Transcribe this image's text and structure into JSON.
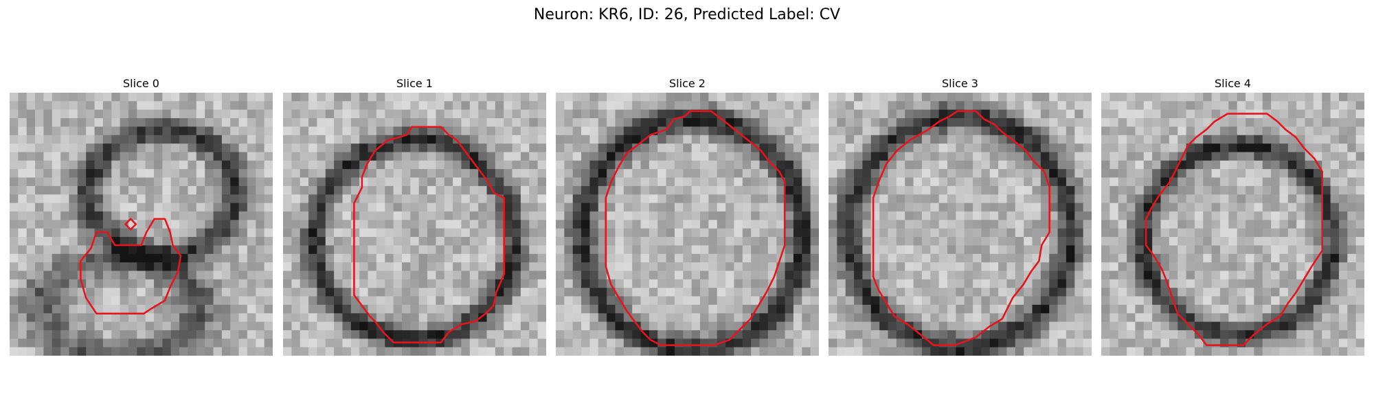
{
  "figure": {
    "title": "Neuron: KR6, ID: 26, Predicted Label: CV"
  },
  "contour_color": "#e8141c",
  "image_style": "grayscale microscopy patch",
  "panels": [
    {
      "title": "Slice 0",
      "shape": "blob",
      "contour": [
        [
          0.33,
          0.53
        ],
        [
          0.37,
          0.53
        ],
        [
          0.4,
          0.58
        ],
        [
          0.5,
          0.58
        ],
        [
          0.52,
          0.53
        ],
        [
          0.55,
          0.48
        ],
        [
          0.59,
          0.48
        ],
        [
          0.61,
          0.53
        ],
        [
          0.62,
          0.58
        ],
        [
          0.65,
          0.62
        ],
        [
          0.64,
          0.68
        ],
        [
          0.61,
          0.74
        ],
        [
          0.59,
          0.79
        ],
        [
          0.54,
          0.82
        ],
        [
          0.51,
          0.84
        ],
        [
          0.33,
          0.84
        ],
        [
          0.29,
          0.78
        ],
        [
          0.27,
          0.71
        ],
        [
          0.27,
          0.64
        ],
        [
          0.31,
          0.59
        ]
      ],
      "extra_contour": [
        [
          0.46,
          0.48
        ],
        [
          0.48,
          0.5
        ],
        [
          0.46,
          0.52
        ],
        [
          0.44,
          0.5
        ]
      ]
    },
    {
      "title": "Slice 1",
      "shape": "ring",
      "contour": [
        [
          0.4,
          0.18
        ],
        [
          0.44,
          0.17
        ],
        [
          0.47,
          0.16
        ],
        [
          0.49,
          0.13
        ],
        [
          0.6,
          0.13
        ],
        [
          0.63,
          0.16
        ],
        [
          0.66,
          0.18
        ],
        [
          0.69,
          0.22
        ],
        [
          0.72,
          0.26
        ],
        [
          0.75,
          0.3
        ],
        [
          0.78,
          0.34
        ],
        [
          0.8,
          0.38
        ],
        [
          0.84,
          0.4
        ],
        [
          0.84,
          0.69
        ],
        [
          0.81,
          0.76
        ],
        [
          0.8,
          0.81
        ],
        [
          0.77,
          0.84
        ],
        [
          0.73,
          0.87
        ],
        [
          0.68,
          0.88
        ],
        [
          0.63,
          0.91
        ],
        [
          0.6,
          0.95
        ],
        [
          0.42,
          0.95
        ],
        [
          0.38,
          0.91
        ],
        [
          0.35,
          0.87
        ],
        [
          0.33,
          0.85
        ],
        [
          0.3,
          0.81
        ],
        [
          0.27,
          0.77
        ],
        [
          0.27,
          0.72
        ],
        [
          0.27,
          0.42
        ],
        [
          0.3,
          0.36
        ],
        [
          0.3,
          0.32
        ],
        [
          0.32,
          0.27
        ],
        [
          0.35,
          0.22
        ]
      ],
      "ring_center": [
        0.5,
        0.56
      ],
      "ring_radius": [
        0.38,
        0.38
      ]
    },
    {
      "title": "Slice 2",
      "shape": "ring",
      "contour": [
        [
          0.42,
          0.14
        ],
        [
          0.45,
          0.1
        ],
        [
          0.49,
          0.09
        ],
        [
          0.51,
          0.07
        ],
        [
          0.59,
          0.07
        ],
        [
          0.63,
          0.1
        ],
        [
          0.68,
          0.14
        ],
        [
          0.73,
          0.18
        ],
        [
          0.78,
          0.22
        ],
        [
          0.81,
          0.26
        ],
        [
          0.85,
          0.3
        ],
        [
          0.87,
          0.34
        ],
        [
          0.87,
          0.58
        ],
        [
          0.85,
          0.64
        ],
        [
          0.83,
          0.7
        ],
        [
          0.8,
          0.76
        ],
        [
          0.77,
          0.81
        ],
        [
          0.74,
          0.86
        ],
        [
          0.7,
          0.9
        ],
        [
          0.66,
          0.94
        ],
        [
          0.6,
          0.96
        ],
        [
          0.4,
          0.96
        ],
        [
          0.36,
          0.94
        ],
        [
          0.33,
          0.91
        ],
        [
          0.3,
          0.87
        ],
        [
          0.27,
          0.83
        ],
        [
          0.24,
          0.78
        ],
        [
          0.21,
          0.73
        ],
        [
          0.19,
          0.66
        ],
        [
          0.19,
          0.4
        ],
        [
          0.21,
          0.34
        ],
        [
          0.24,
          0.28
        ],
        [
          0.27,
          0.23
        ],
        [
          0.31,
          0.2
        ],
        [
          0.36,
          0.16
        ]
      ],
      "ring_center": [
        0.52,
        0.54
      ],
      "ring_radius": [
        0.42,
        0.44
      ]
    },
    {
      "title": "Slice 3",
      "shape": "ring",
      "contour": [
        [
          0.38,
          0.14
        ],
        [
          0.42,
          0.11
        ],
        [
          0.46,
          0.09
        ],
        [
          0.49,
          0.07
        ],
        [
          0.56,
          0.07
        ],
        [
          0.59,
          0.1
        ],
        [
          0.63,
          0.12
        ],
        [
          0.66,
          0.15
        ],
        [
          0.7,
          0.18
        ],
        [
          0.75,
          0.22
        ],
        [
          0.78,
          0.26
        ],
        [
          0.82,
          0.3
        ],
        [
          0.84,
          0.36
        ],
        [
          0.84,
          0.53
        ],
        [
          0.81,
          0.58
        ],
        [
          0.8,
          0.64
        ],
        [
          0.77,
          0.68
        ],
        [
          0.74,
          0.73
        ],
        [
          0.7,
          0.78
        ],
        [
          0.68,
          0.82
        ],
        [
          0.66,
          0.86
        ],
        [
          0.61,
          0.89
        ],
        [
          0.56,
          0.93
        ],
        [
          0.48,
          0.96
        ],
        [
          0.4,
          0.96
        ],
        [
          0.35,
          0.92
        ],
        [
          0.3,
          0.88
        ],
        [
          0.25,
          0.85
        ],
        [
          0.22,
          0.8
        ],
        [
          0.19,
          0.75
        ],
        [
          0.17,
          0.7
        ],
        [
          0.17,
          0.4
        ],
        [
          0.19,
          0.34
        ],
        [
          0.22,
          0.27
        ],
        [
          0.26,
          0.22
        ],
        [
          0.31,
          0.18
        ]
      ],
      "ring_center": [
        0.5,
        0.53
      ],
      "ring_radius": [
        0.42,
        0.44
      ]
    },
    {
      "title": "Slice 4",
      "shape": "ring",
      "contour": [
        [
          0.33,
          0.2
        ],
        [
          0.36,
          0.17
        ],
        [
          0.4,
          0.14
        ],
        [
          0.43,
          0.11
        ],
        [
          0.48,
          0.08
        ],
        [
          0.63,
          0.08
        ],
        [
          0.67,
          0.11
        ],
        [
          0.7,
          0.14
        ],
        [
          0.74,
          0.17
        ],
        [
          0.77,
          0.21
        ],
        [
          0.81,
          0.25
        ],
        [
          0.84,
          0.3
        ],
        [
          0.84,
          0.6
        ],
        [
          0.8,
          0.66
        ],
        [
          0.77,
          0.71
        ],
        [
          0.74,
          0.76
        ],
        [
          0.71,
          0.8
        ],
        [
          0.68,
          0.85
        ],
        [
          0.63,
          0.88
        ],
        [
          0.58,
          0.92
        ],
        [
          0.54,
          0.96
        ],
        [
          0.4,
          0.96
        ],
        [
          0.37,
          0.92
        ],
        [
          0.33,
          0.88
        ],
        [
          0.29,
          0.84
        ],
        [
          0.27,
          0.78
        ],
        [
          0.25,
          0.72
        ],
        [
          0.23,
          0.67
        ],
        [
          0.2,
          0.62
        ],
        [
          0.17,
          0.58
        ],
        [
          0.17,
          0.48
        ],
        [
          0.19,
          0.44
        ],
        [
          0.22,
          0.39
        ],
        [
          0.26,
          0.34
        ],
        [
          0.29,
          0.28
        ]
      ],
      "ring_center": [
        0.52,
        0.56
      ],
      "ring_radius": [
        0.36,
        0.36
      ]
    }
  ]
}
